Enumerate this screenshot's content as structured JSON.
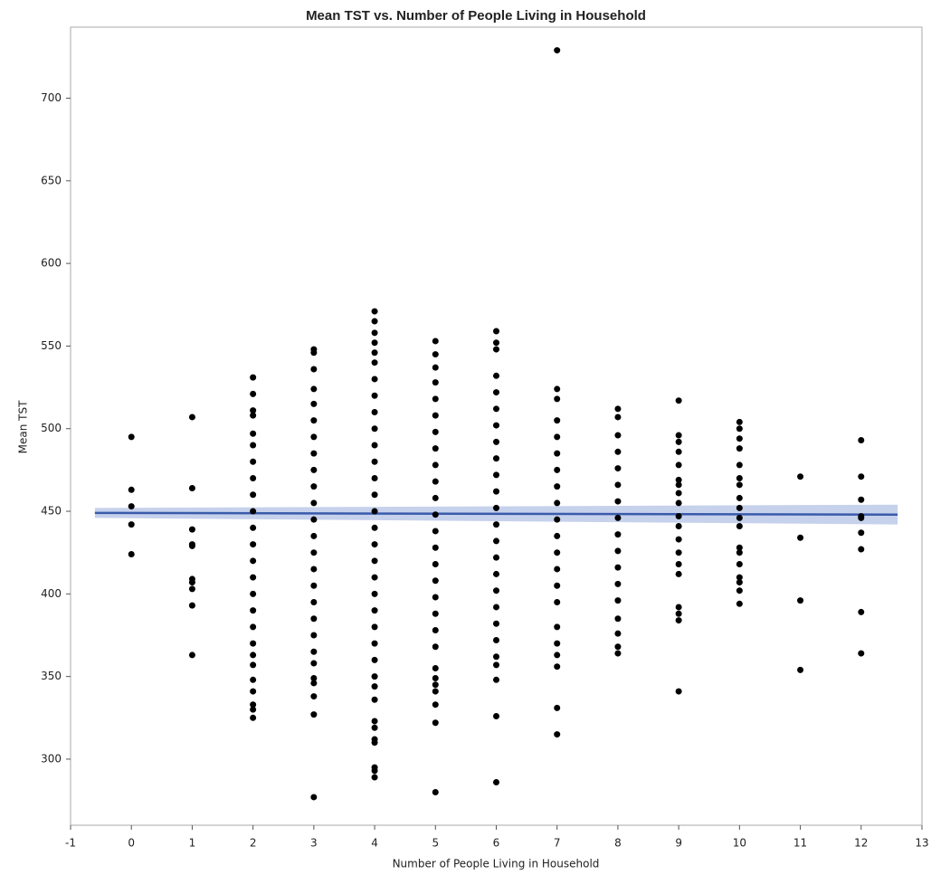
{
  "chart_data": {
    "type": "scatter",
    "title": "Mean TST vs. Number of People Living in Household",
    "x_label": "Number of People Living in Household",
    "y_label": "Mean TST",
    "xlim": [
      -1,
      13
    ],
    "ylim": [
      260,
      743
    ],
    "xticks": [
      -1,
      0,
      1,
      2,
      3,
      4,
      5,
      6,
      7,
      8,
      9,
      10,
      11,
      12,
      13
    ],
    "yticks": [
      300,
      350,
      400,
      450,
      500,
      550,
      600,
      650,
      700
    ],
    "point_color": "#000000",
    "groups": [
      {
        "x": 0,
        "values": [
          495,
          463,
          453,
          442,
          424
        ]
      },
      {
        "x": 1,
        "values": [
          507,
          464,
          439,
          430,
          429,
          409,
          407,
          403,
          393,
          363
        ]
      },
      {
        "x": 2,
        "values": [
          531,
          521,
          511,
          508,
          497,
          490,
          480,
          470,
          460,
          450,
          440,
          430,
          420,
          410,
          400,
          390,
          380,
          370,
          363,
          357,
          348,
          341,
          333,
          330,
          325
        ]
      },
      {
        "x": 3,
        "values": [
          548,
          546,
          536,
          524,
          515,
          505,
          495,
          485,
          475,
          465,
          455,
          445,
          435,
          425,
          415,
          405,
          395,
          385,
          375,
          365,
          358,
          349,
          346,
          338,
          327,
          277
        ]
      },
      {
        "x": 4,
        "values": [
          571,
          565,
          558,
          552,
          546,
          540,
          530,
          520,
          510,
          500,
          490,
          480,
          470,
          460,
          450,
          440,
          430,
          420,
          410,
          400,
          390,
          380,
          370,
          360,
          350,
          344,
          336,
          323,
          319,
          312,
          310,
          295,
          293,
          289
        ]
      },
      {
        "x": 5,
        "values": [
          553,
          545,
          537,
          528,
          518,
          508,
          498,
          488,
          478,
          468,
          458,
          448,
          438,
          428,
          418,
          408,
          398,
          388,
          378,
          368,
          355,
          349,
          345,
          341,
          333,
          322,
          280
        ]
      },
      {
        "x": 6,
        "values": [
          559,
          552,
          548,
          532,
          522,
          512,
          502,
          492,
          482,
          472,
          462,
          452,
          442,
          432,
          422,
          412,
          402,
          392,
          382,
          372,
          362,
          357,
          348,
          326,
          286
        ]
      },
      {
        "x": 7,
        "values": [
          729,
          524,
          518,
          505,
          495,
          485,
          475,
          465,
          455,
          445,
          435,
          425,
          415,
          405,
          395,
          380,
          370,
          363,
          356,
          331,
          315
        ]
      },
      {
        "x": 8,
        "values": [
          512,
          507,
          496,
          486,
          476,
          466,
          456,
          446,
          436,
          426,
          416,
          406,
          396,
          385,
          376,
          368,
          364
        ]
      },
      {
        "x": 9,
        "values": [
          517,
          496,
          492,
          486,
          478,
          469,
          466,
          461,
          455,
          447,
          441,
          433,
          425,
          418,
          412,
          392,
          388,
          384,
          341
        ]
      },
      {
        "x": 10,
        "values": [
          504,
          500,
          494,
          488,
          478,
          470,
          466,
          458,
          452,
          446,
          441,
          428,
          425,
          418,
          410,
          407,
          402,
          394
        ]
      },
      {
        "x": 11,
        "values": [
          471,
          434,
          396,
          354
        ]
      },
      {
        "x": 12,
        "values": [
          493,
          471,
          457,
          447,
          446,
          437,
          427,
          389,
          364
        ]
      }
    ],
    "fit": {
      "color": "#3a5bab",
      "band_color": "#c6d1ec",
      "x": [
        -0.6,
        12.6
      ],
      "values": [
        449,
        448
      ],
      "lower": [
        446,
        442
      ],
      "upper": [
        452,
        454
      ]
    }
  }
}
